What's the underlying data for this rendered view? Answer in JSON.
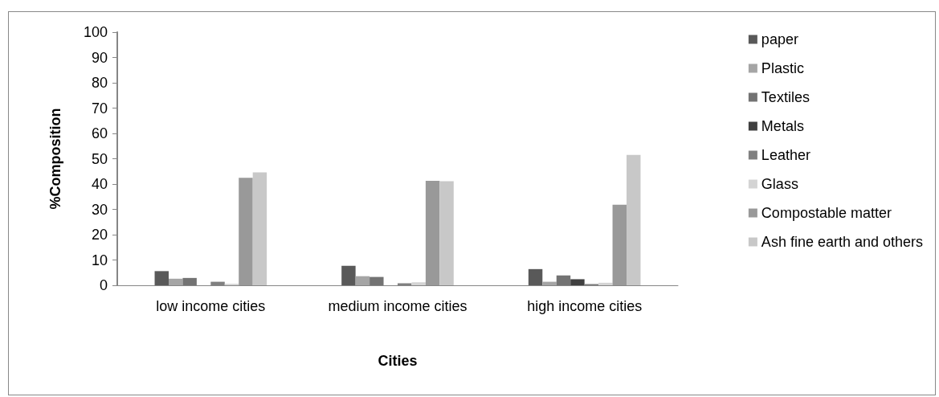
{
  "chart_data": {
    "type": "bar",
    "xlabel": "Cities",
    "ylabel": "%Composition",
    "categories": [
      "low income cities",
      "medium income cities",
      "high income cities"
    ],
    "series": [
      {
        "name": "paper",
        "color": "#595959",
        "values": [
          5.6,
          7.7,
          6.4
        ]
      },
      {
        "name": "Plastic",
        "color": "#a5a5a5",
        "values": [
          2.6,
          3.6,
          1.4
        ]
      },
      {
        "name": "Textiles",
        "color": "#737373",
        "values": [
          2.9,
          3.3,
          3.9
        ]
      },
      {
        "name": "Metals",
        "color": "#404040",
        "values": [
          0,
          0,
          2.4
        ]
      },
      {
        "name": "Leather",
        "color": "#808080",
        "values": [
          1.4,
          0.8,
          0.5
        ]
      },
      {
        "name": "Glass",
        "color": "#d4d4d4",
        "values": [
          0.6,
          1.2,
          1.0
        ]
      },
      {
        "name": "Compostable matter",
        "color": "#999999",
        "values": [
          42.5,
          41.3,
          31.8
        ]
      },
      {
        "name": "Ash fine earth and others",
        "color": "#c8c8c8",
        "values": [
          44.6,
          41.1,
          51.5
        ]
      }
    ],
    "ylim": [
      0,
      100
    ],
    "yticks": [
      0,
      10,
      20,
      30,
      40,
      50,
      60,
      70,
      80,
      90,
      100
    ],
    "grid": false,
    "legend": "right"
  }
}
